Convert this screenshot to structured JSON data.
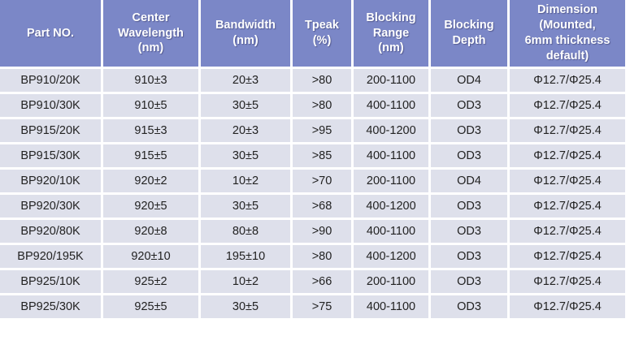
{
  "colors": {
    "header_bg": "#7b87c7",
    "cell_bg": "#dee0eb",
    "header_text": "#ffffff",
    "cell_text": "#222222",
    "grid": "#ffffff"
  },
  "table": {
    "columns": [
      {
        "id": "part-no",
        "label": "Part NO."
      },
      {
        "id": "center-wavelength",
        "label": "Center\nWavelength\n(nm)"
      },
      {
        "id": "bandwidth",
        "label": "Bandwidth\n(nm)"
      },
      {
        "id": "tpeak",
        "label": "Tpeak\n(%)"
      },
      {
        "id": "blocking-range",
        "label": "Blocking\nRange\n(nm)"
      },
      {
        "id": "blocking-depth",
        "label": "Blocking\nDepth"
      },
      {
        "id": "dimension",
        "label": "Dimension\n(Mounted,\n6mm thickness\ndefault)"
      }
    ],
    "rows": [
      [
        "BP910/20K",
        "910±3",
        "20±3",
        ">80",
        "200-1100",
        "OD4",
        "Φ12.7/Φ25.4"
      ],
      [
        "BP910/30K",
        "910±5",
        "30±5",
        ">80",
        "400-1100",
        "OD3",
        "Φ12.7/Φ25.4"
      ],
      [
        "BP915/20K",
        "915±3",
        "20±3",
        ">95",
        "400-1200",
        "OD3",
        "Φ12.7/Φ25.4"
      ],
      [
        "BP915/30K",
        "915±5",
        "30±5",
        ">85",
        "400-1100",
        "OD3",
        "Φ12.7/Φ25.4"
      ],
      [
        "BP920/10K",
        "920±2",
        "10±2",
        ">70",
        "200-1100",
        "OD4",
        "Φ12.7/Φ25.4"
      ],
      [
        "BP920/30K",
        "920±5",
        "30±5",
        ">68",
        "400-1200",
        "OD3",
        "Φ12.7/Φ25.4"
      ],
      [
        "BP920/80K",
        "920±8",
        "80±8",
        ">90",
        "400-1100",
        "OD3",
        "Φ12.7/Φ25.4"
      ],
      [
        "BP920/195K",
        "920±10",
        "195±10",
        ">80",
        "400-1200",
        "OD3",
        "Φ12.7/Φ25.4"
      ],
      [
        "BP925/10K",
        "925±2",
        "10±2",
        ">66",
        "200-1100",
        "OD3",
        "Φ12.7/Φ25.4"
      ],
      [
        "BP925/30K",
        "925±5",
        "30±5",
        ">75",
        "400-1100",
        "OD3",
        "Φ12.7/Φ25.4"
      ]
    ]
  }
}
